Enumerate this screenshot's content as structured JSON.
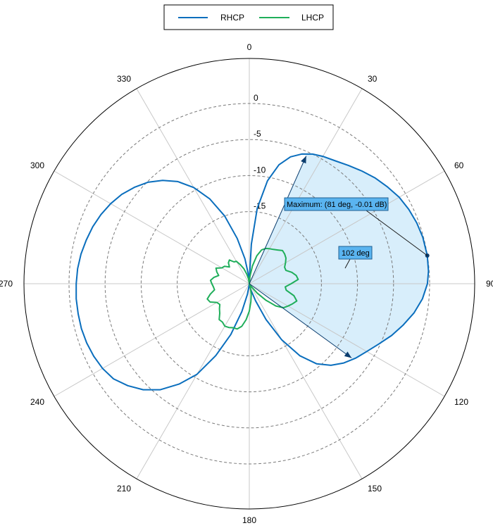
{
  "colors": {
    "rhcp": "#0a6ebd",
    "lhcp": "#1fae5a",
    "fill": "#d8eefb",
    "callout_bg": "#5ab4f0",
    "grid": "#c8c8c8",
    "dashed": "#7a7a7a",
    "marker": "#0b3d6e"
  },
  "legend": [
    {
      "name": "RHCP",
      "color": "#0a6ebd"
    },
    {
      "name": "LHCP",
      "color": "#1fae5a"
    }
  ],
  "annotations": {
    "maximum": "Maximum: (81 deg, -0.01 dB)",
    "span": "102 deg"
  },
  "chart_data": {
    "type": "polar-line",
    "angle_unit": "deg",
    "angle_ticks": [
      "0",
      "30",
      "60",
      "90",
      "120",
      "150",
      "180",
      "210",
      "240",
      "270",
      "300",
      "330"
    ],
    "radial_ticks": [
      "0",
      "-5",
      "-10",
      "-15"
    ],
    "radial_tick_values": [
      0,
      -5,
      -10,
      -15
    ],
    "rlim": [
      -25,
      0
    ],
    "angular_direction": "clockwise",
    "zero_location": "top",
    "grid": true,
    "legend_position": "top",
    "maximum": {
      "angle": 81,
      "value": -0.01
    },
    "span": {
      "start": 24,
      "end": 126,
      "width": 102
    },
    "series": [
      {
        "name": "RHCP",
        "angles": [
          0,
          3,
          6,
          10,
          14,
          18,
          22,
          26,
          30,
          35,
          40,
          45,
          50,
          55,
          60,
          65,
          70,
          75,
          81,
          86,
          90,
          95,
          100,
          105,
          110,
          115,
          120,
          125,
          130,
          135,
          140,
          145,
          150,
          155,
          160,
          165,
          170,
          175,
          180,
          185,
          190,
          195,
          200,
          205,
          210,
          215,
          220,
          225,
          230,
          235,
          240,
          245,
          250,
          255,
          260,
          265,
          270,
          275,
          280,
          285,
          290,
          295,
          300,
          305,
          310,
          315,
          320,
          325,
          330,
          335,
          340,
          345,
          350,
          355,
          360
        ],
        "values": [
          -24.5,
          -19.5,
          -14.5,
          -10.5,
          -8.0,
          -6.5,
          -5.6,
          -5.0,
          -4.6,
          -4.2,
          -3.6,
          -2.9,
          -2.2,
          -1.6,
          -1.0,
          -0.6,
          -0.3,
          -0.1,
          -0.01,
          -0.1,
          -0.3,
          -0.9,
          -1.8,
          -2.9,
          -4.0,
          -5.2,
          -6.2,
          -7.0,
          -7.9,
          -9.0,
          -10.5,
          -12.8,
          -16.0,
          -19.5,
          -22.5,
          -24.0,
          -24.6,
          -24.8,
          -25.0,
          -24.8,
          -23.5,
          -21.0,
          -17.5,
          -14.0,
          -10.5,
          -8.0,
          -5.8,
          -4.2,
          -3.0,
          -2.0,
          -1.5,
          -1.2,
          -1.0,
          -0.9,
          -0.9,
          -0.9,
          -1.0,
          -1.1,
          -1.3,
          -1.6,
          -1.9,
          -2.3,
          -2.8,
          -3.4,
          -4.2,
          -5.1,
          -6.3,
          -7.7,
          -9.6,
          -12.0,
          -15.0,
          -18.5,
          -21.5,
          -23.8,
          -24.5
        ]
      },
      {
        "name": "LHCP",
        "angles": [
          0,
          5,
          10,
          15,
          20,
          25,
          30,
          35,
          40,
          45,
          50,
          55,
          60,
          65,
          70,
          75,
          80,
          85,
          90,
          95,
          100,
          105,
          110,
          115,
          120,
          125,
          130,
          135,
          140,
          145,
          150,
          155,
          160,
          165,
          170,
          175,
          180,
          185,
          190,
          195,
          200,
          205,
          210,
          215,
          220,
          225,
          230,
          235,
          240,
          245,
          250,
          255,
          260,
          265,
          270,
          275,
          280,
          285,
          290,
          295,
          300,
          305,
          310,
          315,
          320,
          325,
          330,
          335,
          340,
          345,
          350,
          355,
          360
        ],
        "values": [
          -25.0,
          -24.0,
          -22.5,
          -21.0,
          -20.0,
          -19.6,
          -19.4,
          -19.2,
          -18.9,
          -18.5,
          -18.6,
          -18.8,
          -19.2,
          -19.6,
          -19.6,
          -18.9,
          -18.4,
          -18.2,
          -19.2,
          -20.0,
          -19.8,
          -18.6,
          -18.0,
          -18.4,
          -18.8,
          -19.2,
          -20.2,
          -21.8,
          -23.3,
          -24.5,
          -24.9,
          -25.0,
          -24.9,
          -24.4,
          -23.5,
          -22.5,
          -21.2,
          -20.0,
          -19.0,
          -18.5,
          -18.5,
          -18.3,
          -18.2,
          -18.5,
          -18.5,
          -19.2,
          -19.6,
          -20.0,
          -19.8,
          -19.0,
          -18.8,
          -19.4,
          -20.1,
          -20.0,
          -19.8,
          -19.6,
          -20.0,
          -20.6,
          -20.2,
          -19.9,
          -20.6,
          -20.8,
          -21.4,
          -20.9,
          -20.7,
          -21.3,
          -21.4,
          -22.1,
          -22.8,
          -23.6,
          -24.3,
          -24.8,
          -25.0
        ]
      }
    ]
  }
}
